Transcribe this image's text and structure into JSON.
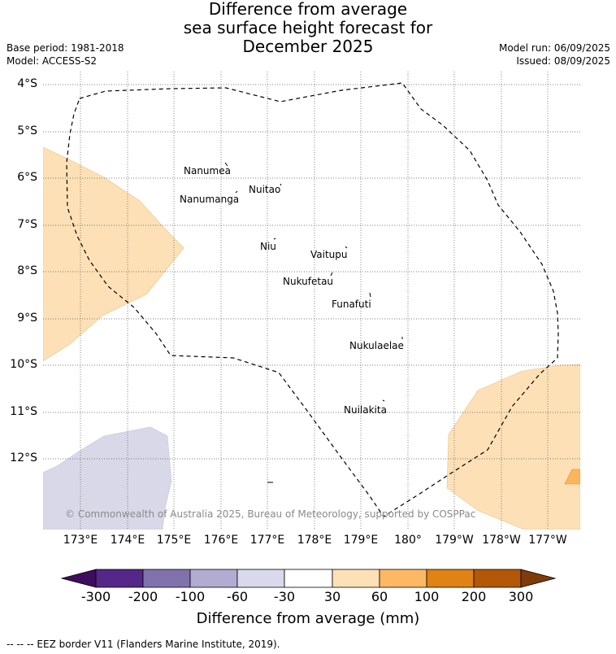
{
  "title": {
    "line1": "Difference from average",
    "line2": "sea surface height forecast for",
    "line3": "December 2025"
  },
  "meta": {
    "base_period": "Base period: 1981-2018",
    "model": "Model: ACCESS-S2",
    "model_run": "Model run: 06/09/2025",
    "issued": "Issued: 08/09/2025"
  },
  "map": {
    "lat_ticks": [
      "4°S",
      "5°S",
      "6°S",
      "7°S",
      "8°S",
      "9°S",
      "10°S",
      "11°S",
      "12°S"
    ],
    "lon_ticks": [
      "173°E",
      "174°E",
      "175°E",
      "176°E",
      "177°E",
      "178°E",
      "179°E",
      "180°",
      "179°W",
      "178°W",
      "177°W"
    ],
    "islands": [
      "Nanumea",
      "Nuitao",
      "Nanumanga",
      "Niu",
      "Vaitupu",
      "Nukufetau",
      "Funafuti",
      "Nukulaelae",
      "Nuilakita"
    ],
    "copyright": "© Commonwealth of Australia 2025, Bureau of Meteorology, supported by COSPPac",
    "colors": {
      "positive_30_60": "#fde0b6",
      "positive_60_100": "#fdb45e",
      "negative_60_30": "#d8d8e9",
      "border": "#000000",
      "grid": "#555555"
    }
  },
  "colorbar": {
    "ticks": [
      "-300",
      "-200",
      "-100",
      "-60",
      "-30",
      "30",
      "60",
      "100",
      "200",
      "300"
    ],
    "colors": [
      "#3f0d5e",
      "#542788",
      "#8073ac",
      "#b2abd2",
      "#d8daeb",
      "#ffffff",
      "#fee0b6",
      "#fdb863",
      "#e08214",
      "#b35806",
      "#7f3b08"
    ],
    "label": "Difference from average (mm)"
  },
  "footer": "--  --  -- EEZ border V11 (Flanders Marine Institute, 2019)."
}
